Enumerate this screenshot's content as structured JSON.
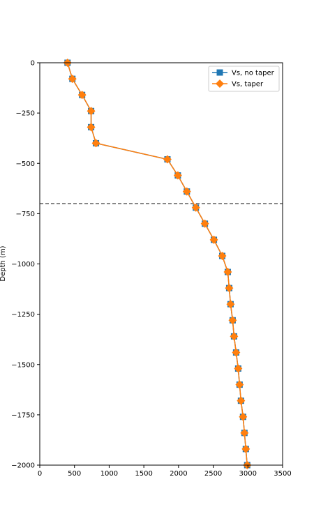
{
  "chart_data": {
    "type": "line",
    "title": "",
    "xlabel": "",
    "ylabel": "Depth (m)",
    "xlim": [
      0,
      3500
    ],
    "ylim": [
      -2000,
      0
    ],
    "xticks": [
      0,
      500,
      1000,
      1500,
      2000,
      2500,
      3000,
      3500
    ],
    "yticks": [
      0,
      -250,
      -500,
      -750,
      -1000,
      -1250,
      -1500,
      -1750,
      -2000
    ],
    "xtick_labels": [
      "0",
      "500",
      "1000",
      "1500",
      "2000",
      "2500",
      "3000",
      "3500"
    ],
    "ytick_labels": [
      "0",
      "−250",
      "−500",
      "−750",
      "−1000",
      "−1250",
      "−1500",
      "−1750",
      "−2000"
    ],
    "grid": false,
    "legend_position": "top-right",
    "reference_lines": [
      {
        "orientation": "horizontal",
        "y": -700,
        "style": "dashed",
        "color": "#333333"
      }
    ],
    "series": [
      {
        "name": "Vs, no taper",
        "color": "#1f77b4",
        "marker": "square",
        "x": [
          400,
          470,
          610,
          740,
          740,
          810,
          1840,
          1990,
          2120,
          2250,
          2380,
          2510,
          2630,
          2710,
          2730,
          2750,
          2780,
          2800,
          2830,
          2860,
          2880,
          2900,
          2930,
          2950,
          2970,
          2990
        ],
        "y": [
          0,
          -80,
          -160,
          -240,
          -320,
          -400,
          -480,
          -560,
          -640,
          -720,
          -800,
          -880,
          -960,
          -1040,
          -1120,
          -1200,
          -1280,
          -1360,
          -1440,
          -1520,
          -1600,
          -1680,
          -1760,
          -1840,
          -1920,
          -2000
        ]
      },
      {
        "name": "Vs, taper",
        "color": "#ff7f0e",
        "marker": "diamond",
        "x": [
          400,
          470,
          610,
          740,
          740,
          810,
          1840,
          1990,
          2120,
          2250,
          2380,
          2510,
          2630,
          2710,
          2730,
          2750,
          2780,
          2800,
          2830,
          2860,
          2880,
          2900,
          2930,
          2950,
          2970,
          2990
        ],
        "y": [
          0,
          -80,
          -160,
          -240,
          -320,
          -400,
          -480,
          -560,
          -640,
          -720,
          -800,
          -880,
          -960,
          -1040,
          -1120,
          -1200,
          -1280,
          -1360,
          -1440,
          -1520,
          -1600,
          -1680,
          -1760,
          -1840,
          -1920,
          -2000
        ]
      }
    ]
  }
}
